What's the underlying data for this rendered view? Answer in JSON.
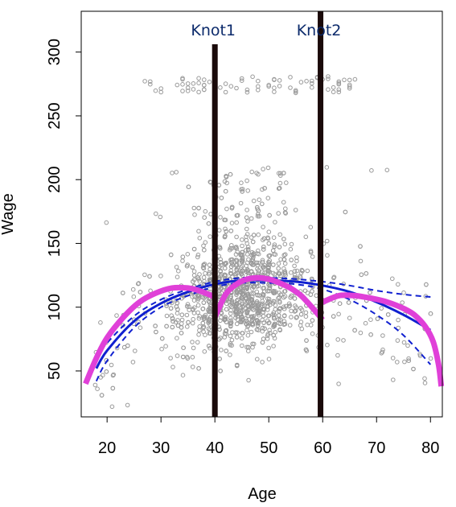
{
  "chart_data": {
    "type": "scatter",
    "xlabel": "Age",
    "ylabel": "Wage",
    "xlim": [
      15.2,
      82.2
    ],
    "ylim": [
      14,
      332
    ],
    "x_ticks": [
      20,
      30,
      40,
      50,
      60,
      70,
      80
    ],
    "y_ticks": [
      50,
      100,
      150,
      200,
      250,
      300
    ],
    "knots": [
      {
        "label": "Knot1",
        "x": 40
      },
      {
        "label": "Knot2",
        "x": 59.6
      }
    ],
    "colors": {
      "points": "#9a9a9a",
      "knot_line": "#1a0a0a",
      "spline_fit": "#1020d0",
      "piecewise_fit": "#e040d8",
      "knot_label": "#0b2a6b"
    },
    "series": [
      {
        "kind": "spline_fit",
        "x": [
          18,
          20,
          25,
          30,
          35,
          40,
          45,
          50,
          55,
          60,
          65,
          70,
          75,
          80
        ],
        "y": [
          52,
          66,
          89,
          103,
          112,
          118,
          121,
          121,
          120,
          117,
          112,
          104,
          94,
          82
        ]
      },
      {
        "kind": "confidence_upper",
        "x": [
          18,
          20,
          25,
          30,
          35,
          40,
          45,
          50,
          55,
          60,
          65,
          70,
          75,
          80
        ],
        "y": [
          60,
          72,
          93,
          106,
          114,
          120,
          123,
          123,
          122,
          120,
          117,
          113,
          110,
          108
        ]
      },
      {
        "kind": "confidence_lower",
        "x": [
          18,
          20,
          25,
          30,
          35,
          40,
          45,
          50,
          55,
          60,
          65,
          70,
          75,
          80
        ],
        "y": [
          42,
          58,
          84,
          100,
          109,
          116,
          119,
          119,
          118,
          114,
          106,
          94,
          78,
          55
        ]
      },
      {
        "kind": "piecewise_fit_1",
        "x": [
          16,
          18,
          20,
          23,
          26,
          29,
          32,
          35,
          37,
          40
        ],
        "y": [
          40,
          60,
          76,
          92,
          104,
          111,
          115,
          115,
          113,
          108
        ]
      },
      {
        "kind": "piecewise_fit_2",
        "x": [
          40,
          42,
          44,
          46,
          48,
          50,
          52,
          54,
          56,
          58,
          60
        ],
        "y": [
          92,
          110,
          118,
          122,
          123,
          122,
          119,
          115,
          109,
          100,
          90
        ]
      },
      {
        "kind": "piecewise_fit_3",
        "x": [
          60,
          63,
          66,
          69,
          72,
          75,
          77,
          79,
          80.5,
          81.5,
          82
        ],
        "y": [
          104,
          109,
          109,
          107,
          104,
          99,
          94,
          85,
          73,
          55,
          38
        ]
      }
    ]
  }
}
